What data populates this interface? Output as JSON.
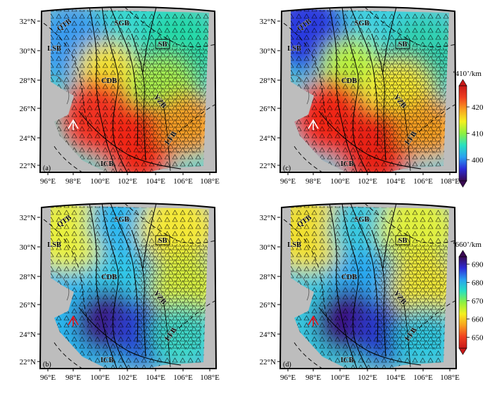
{
  "panels": [
    {
      "id": "a",
      "label": "(a)",
      "field": "410",
      "variant": 0,
      "arrow_color": "#ffffff"
    },
    {
      "id": "c",
      "label": "(c)",
      "field": "410",
      "variant": 1,
      "arrow_color": "#ffffff"
    },
    {
      "id": "b",
      "label": "(b)",
      "field": "660",
      "variant": 0,
      "arrow_color": "#e8141c"
    },
    {
      "id": "d",
      "label": "(d)",
      "field": "660",
      "variant": 1,
      "arrow_color": "#e8141c"
    }
  ],
  "lat_ticks": [
    "22°N",
    "24°N",
    "26°N",
    "28°N",
    "30°N",
    "32°N"
  ],
  "lon_ticks": [
    "96°E",
    "98°E",
    "100°E",
    "102°E",
    "104°E",
    "106°E",
    "108°E"
  ],
  "region_labels": {
    "QTB": "QTB",
    "LSB": "LSB",
    "SGB": "SGB",
    "SB": "SB",
    "CDB": "CDB",
    "YZB": "YZB",
    "LFB": "LFB",
    "ICB": "ICB"
  },
  "colorbars": [
    {
      "title": "‘410’/km",
      "ticks": [
        "400",
        "410",
        "420"
      ],
      "range": [
        392,
        428
      ],
      "tick_values": [
        400,
        410,
        420
      ],
      "colors": [
        "#3a0a52",
        "#2c2cd8",
        "#2aa0f0",
        "#28e0c0",
        "#8ef040",
        "#f4f020",
        "#f8a020",
        "#f04020",
        "#c81818"
      ]
    },
    {
      "title": "‘660’/km",
      "ticks": [
        "650",
        "660",
        "670",
        "680",
        "690"
      ],
      "range": [
        644,
        694
      ],
      "tick_values": [
        650,
        660,
        670,
        680,
        690
      ],
      "colors": [
        "#c81818",
        "#f04020",
        "#f8a020",
        "#f4f020",
        "#8ef040",
        "#28e0c0",
        "#2aa0f0",
        "#2c2cd8",
        "#3a0a52"
      ]
    }
  ],
  "colors": {
    "land": "#bdbdbd",
    "frame": "#000000"
  }
}
